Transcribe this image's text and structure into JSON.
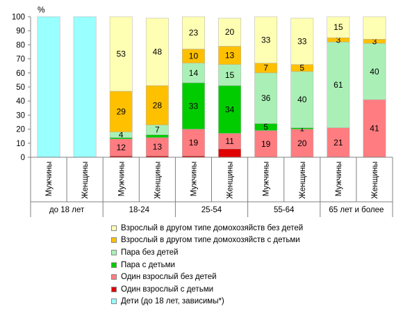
{
  "chart_data": {
    "type": "bar",
    "stacked": true,
    "ylabel": "%",
    "ylim": [
      0,
      100
    ],
    "yticks": [
      0,
      10,
      20,
      30,
      40,
      50,
      60,
      70,
      80,
      90,
      100
    ],
    "grid": false,
    "legend_position": "bottom",
    "groups": [
      "до 18 лет",
      "18-24",
      "25-54",
      "55-64",
      "65 лет и более"
    ],
    "categories": [
      "Мужчины",
      "Женщины",
      "Мужчины",
      "Женщины",
      "Мужчины",
      "Женщины",
      "Мужчины",
      "Женщины",
      "Мужчины",
      "Женщины"
    ],
    "series": [
      {
        "name": "Один взрослый с детьми",
        "color": "#e00000",
        "values": [
          0,
          0,
          1,
          1,
          1,
          6,
          0,
          0,
          0,
          0
        ],
        "labels": [
          "",
          "",
          "",
          "",
          "",
          "",
          "",
          "",
          "",
          ""
        ]
      },
      {
        "name": "Один взрослый без детей",
        "color": "#ff7c80",
        "values": [
          0,
          0,
          12,
          13,
          19,
          11,
          19,
          20,
          21,
          41
        ],
        "labels": [
          "",
          "",
          "12",
          "13",
          "19",
          "11",
          "19",
          "20",
          "21",
          "41"
        ]
      },
      {
        "name": "Пара с детьми",
        "color": "#00cc00",
        "values": [
          0,
          0,
          1,
          2,
          33,
          34,
          5,
          1,
          0,
          0
        ],
        "labels": [
          "",
          "",
          "",
          "",
          "33",
          "34",
          "5",
          "1",
          "",
          ""
        ]
      },
      {
        "name": "Пара без детей",
        "color": "#aaf0b6",
        "values": [
          0,
          0,
          4,
          7,
          14,
          15,
          36,
          40,
          61,
          40
        ],
        "labels": [
          "",
          "",
          "4",
          "7",
          "14",
          "15",
          "36",
          "40",
          "61",
          "40"
        ]
      },
      {
        "name": "Взрослый в другом типе домохозяйств с детьми",
        "color": "#ffc000",
        "values": [
          0,
          0,
          29,
          28,
          10,
          13,
          7,
          5,
          3,
          3
        ],
        "labels": [
          "",
          "",
          "29",
          "28",
          "10",
          "13",
          "7",
          "5",
          "3",
          "3"
        ]
      },
      {
        "name": "Взрослый в другом типе домохозяйств без детей",
        "color": "#ffffb3",
        "values": [
          0,
          0,
          53,
          48,
          23,
          20,
          33,
          33,
          15,
          16
        ],
        "labels": [
          "",
          "",
          "53",
          "48",
          "23",
          "20",
          "33",
          "33",
          "15",
          ""
        ]
      },
      {
        "name": "Дети (до 18 лет, зависимы*)",
        "color": "#99ffff",
        "values": [
          100,
          100,
          0,
          0,
          0,
          0,
          0,
          0,
          0,
          0
        ],
        "labels": [
          "",
          "",
          "",
          "",
          "",
          "",
          "",
          "",
          "",
          ""
        ]
      }
    ],
    "legend_order": [
      5,
      4,
      3,
      2,
      1,
      0,
      6
    ]
  }
}
